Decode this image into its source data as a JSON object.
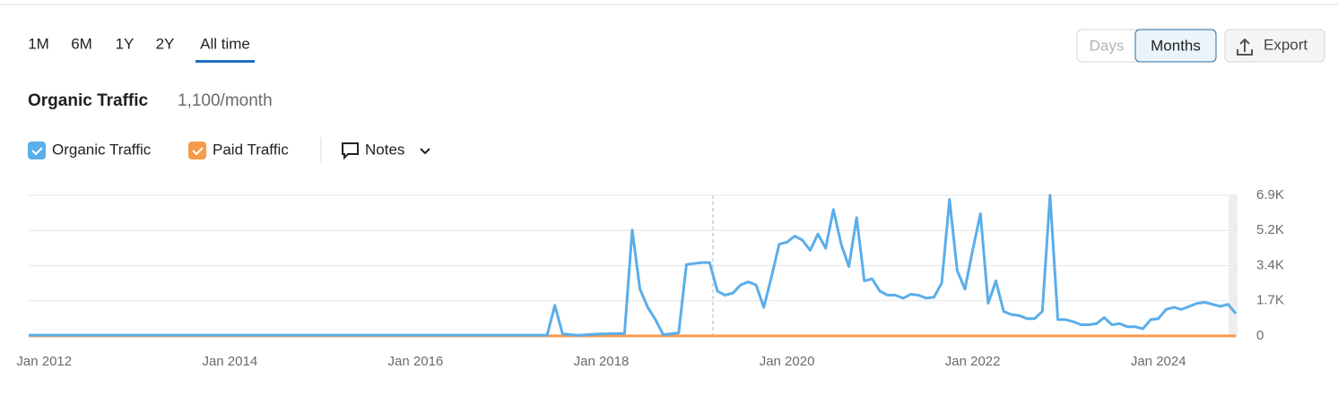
{
  "toolbar": {
    "ranges": [
      "1M",
      "6M",
      "1Y",
      "2Y",
      "All time"
    ],
    "granularity": [
      "Days",
      "Months"
    ],
    "export": "Export"
  },
  "header": {
    "title": "Organic Traffic",
    "value": "1,100/month"
  },
  "notes": "Notes",
  "chart_data": {
    "type": "line",
    "xlim": [
      "2011-11",
      "2024-11"
    ],
    "xticks": [
      {
        "value": "2012-01",
        "label": "Jan 2012"
      },
      {
        "value": "2014-01",
        "label": "Jan 2014"
      },
      {
        "value": "2016-01",
        "label": "Jan 2016"
      },
      {
        "value": "2018-01",
        "label": "Jan 2018"
      },
      {
        "value": "2020-01",
        "label": "Jan 2020"
      },
      {
        "value": "2022-01",
        "label": "Jan 2022"
      },
      {
        "value": "2024-01",
        "label": "Jan 2024"
      }
    ],
    "ylim": [
      0,
      6900
    ],
    "yticks": [
      0,
      {
        "value": 1725,
        "label": "1.7K"
      },
      {
        "value": 3450,
        "label": "3.4K"
      },
      {
        "value": 5175,
        "label": "5.2K"
      },
      {
        "value": 6900,
        "label": "6.9K"
      }
    ],
    "grid": true,
    "series": [
      {
        "name": "Organic Traffic",
        "color": "#5aaeea",
        "x": [
          "2011-11",
          "2017-06",
          "2017-07",
          "2017-08",
          "2017-09",
          "2017-10",
          "2018-01",
          "2018-04",
          "2018-05",
          "2018-06",
          "2018-07",
          "2018-08",
          "2018-09",
          "2018-10",
          "2018-11",
          "2018-12",
          "2019-01",
          "2019-02",
          "2019-03",
          "2019-04",
          "2019-05",
          "2019-06",
          "2019-07",
          "2019-08",
          "2019-09",
          "2019-10",
          "2019-11",
          "2019-12",
          "2020-01",
          "2020-02",
          "2020-03",
          "2020-04",
          "2020-05",
          "2020-06",
          "2020-07",
          "2020-08",
          "2020-09",
          "2020-10",
          "2020-11",
          "2020-12",
          "2021-01",
          "2021-02",
          "2021-03",
          "2021-04",
          "2021-05",
          "2021-06",
          "2021-07",
          "2021-08",
          "2021-09",
          "2021-10",
          "2021-11",
          "2021-12",
          "2022-01",
          "2022-02",
          "2022-03",
          "2022-04",
          "2022-05",
          "2022-06",
          "2022-07",
          "2022-08",
          "2022-09",
          "2022-10",
          "2022-11",
          "2022-12",
          "2023-01",
          "2023-02",
          "2023-03",
          "2023-04",
          "2023-05",
          "2023-06",
          "2023-07",
          "2023-08",
          "2023-09",
          "2023-10",
          "2023-11",
          "2023-12",
          "2024-01",
          "2024-02",
          "2024-03",
          "2024-04",
          "2024-05",
          "2024-06",
          "2024-07",
          "2024-08",
          "2024-09",
          "2024-10",
          "2024-11"
        ],
        "values": [
          40,
          40,
          1500,
          100,
          60,
          30,
          100,
          120,
          5200,
          2300,
          1400,
          800,
          60,
          100,
          150,
          3500,
          3550,
          3600,
          3600,
          2200,
          2000,
          2100,
          2500,
          2650,
          2500,
          1400,
          2900,
          4500,
          4600,
          4900,
          4700,
          4200,
          5000,
          4300,
          6200,
          4500,
          3400,
          5800,
          2700,
          2800,
          2200,
          2000,
          2000,
          1850,
          2050,
          2000,
          1850,
          1900,
          2600,
          6700,
          3200,
          2300,
          4200,
          6000,
          1600,
          2700,
          1200,
          1050,
          1000,
          850,
          850,
          1200,
          6900,
          800,
          800,
          700,
          550,
          550,
          600,
          900,
          550,
          600,
          450,
          450,
          350,
          800,
          850,
          1300,
          1400,
          1300,
          1450,
          1600,
          1650,
          1550,
          1450,
          1550,
          1100
        ]
      },
      {
        "name": "Paid Traffic",
        "color": "#f89a4b",
        "x": [
          "2011-11",
          "2024-11"
        ],
        "values": [
          0,
          0
        ]
      }
    ]
  }
}
